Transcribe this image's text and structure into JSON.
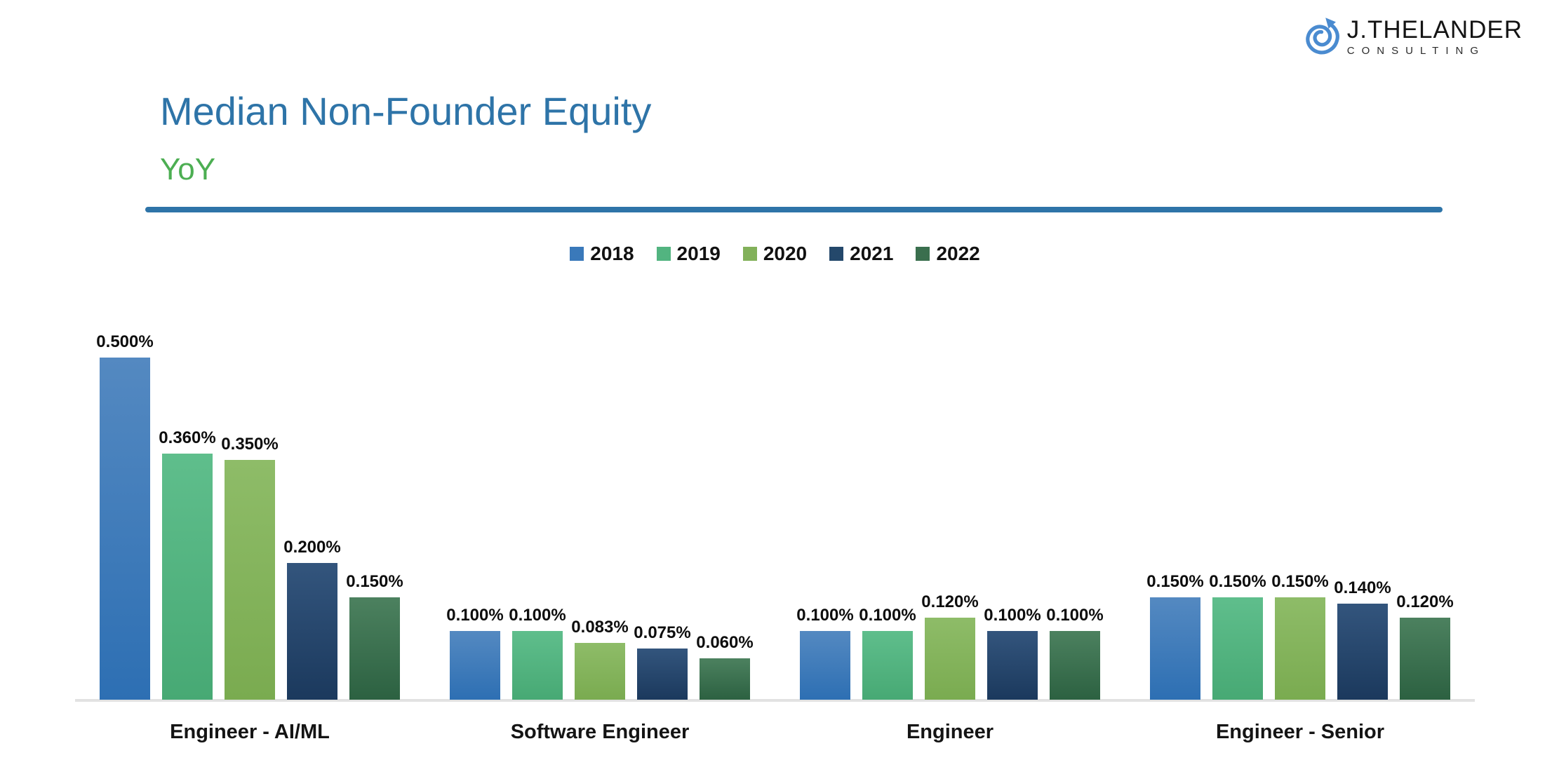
{
  "brand": {
    "name": "J.THELANDER",
    "subname": "CONSULTING",
    "logo_color": "#4a8bd0"
  },
  "header": {
    "title": "Median Non-Founder Equity",
    "subtitle": "YoY",
    "title_color": "#2e74a8",
    "subtitle_color": "#4cae52",
    "divider_color": "#2e74a8"
  },
  "chart_data": {
    "type": "bar",
    "title": "Median Non-Founder Equity",
    "subtitle": "YoY",
    "categories": [
      "Engineer - AI/ML",
      "Software Engineer",
      "Engineer",
      "Engineer - Senior"
    ],
    "series": [
      {
        "name": "2018",
        "swatch": "#3a79ba",
        "grad_top": "#5489c1",
        "grad_bottom": "#2d6fb3",
        "values": [
          0.5,
          0.1,
          0.1,
          0.15
        ]
      },
      {
        "name": "2019",
        "swatch": "#52b480",
        "grad_top": "#5fbe8c",
        "grad_bottom": "#47a974",
        "values": [
          0.36,
          0.1,
          0.1,
          0.15
        ]
      },
      {
        "name": "2020",
        "swatch": "#82b15a",
        "grad_top": "#8ebc68",
        "grad_bottom": "#7aab50",
        "values": [
          0.35,
          0.083,
          0.12,
          0.15
        ]
      },
      {
        "name": "2021",
        "swatch": "#24486b",
        "grad_top": "#33557d",
        "grad_bottom": "#1b395d",
        "values": [
          0.2,
          0.075,
          0.1,
          0.14
        ]
      },
      {
        "name": "2022",
        "swatch": "#3a6f4e",
        "grad_top": "#4c815f",
        "grad_bottom": "#2c6141",
        "values": [
          0.15,
          0.06,
          0.1,
          0.12
        ]
      }
    ],
    "value_labels": [
      [
        "0.500%",
        "0.100%",
        "0.100%",
        "0.150%"
      ],
      [
        "0.360%",
        "0.100%",
        "0.100%",
        "0.150%"
      ],
      [
        "0.350%",
        "0.083%",
        "0.120%",
        "0.150%"
      ],
      [
        "0.200%",
        "0.075%",
        "0.100%",
        "0.140%"
      ],
      [
        "0.150%",
        "0.060%",
        "0.100%",
        "0.120%"
      ]
    ],
    "value_format": "0.000%",
    "unit": "percent",
    "ylim": [
      0,
      0.512
    ],
    "grid": false,
    "y_axis_visible": false,
    "legend_position": "top-center",
    "axis_line_color": "#e2e2e2",
    "value_label_color": "#0d0d0d",
    "category_label_color": "#141414"
  }
}
